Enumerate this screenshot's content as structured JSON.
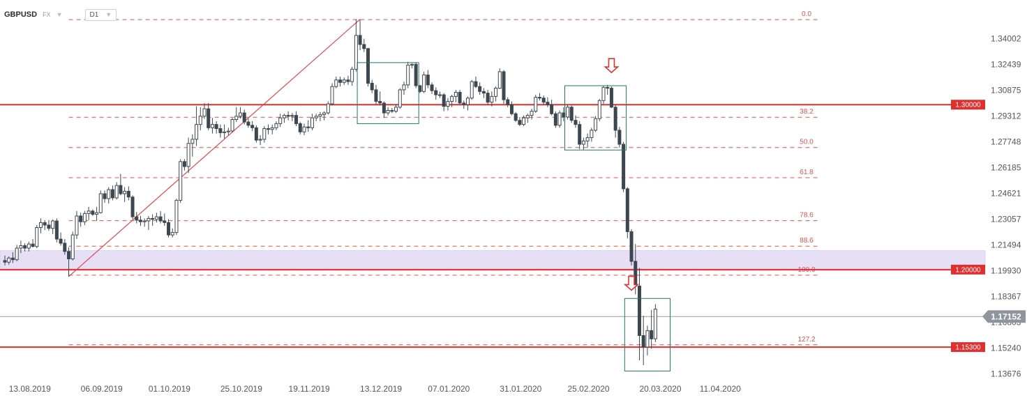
{
  "header": {
    "symbol": "GBPUSD",
    "market": "FX",
    "timeframe": "D1"
  },
  "chart_data": {
    "type": "candlestick",
    "ylim": [
      1.1346,
      1.3528
    ],
    "y_ticks": [
      "1.34002",
      "1.32439",
      "1.30875",
      "1.29312",
      "1.27748",
      "1.26185",
      "1.24621",
      "1.23057",
      "1.21494",
      "1.19930",
      "1.18367",
      "1.16803",
      "1.15240",
      "1.13676"
    ],
    "x_ticks": [
      "13.08.2019",
      "06.09.2019",
      "01.10.2019",
      "25.10.2019",
      "19.11.2019",
      "13.12.2019",
      "07.01.2020",
      "31.01.2020",
      "25.02.2020",
      "20.03.2020",
      "11.04.2020"
    ],
    "x_tick_dates": [
      "2019-08-13",
      "2019-09-06",
      "2019-10-01",
      "2019-10-25",
      "2019-11-19",
      "2019-12-13",
      "2020-01-07",
      "2020-01-31",
      "2020-02-25",
      "2020-03-20",
      "2020-04-11"
    ],
    "current_price": "1.17152",
    "horizontal_levels": [
      {
        "label": "1.30000",
        "value": 1.3
      },
      {
        "label": "1.20000",
        "value": 1.2
      },
      {
        "label": "1.15300",
        "value": 1.153
      }
    ],
    "support_zone": [
      1.1994,
      1.2115
    ],
    "fibonacci": [
      {
        "label": "0.0",
        "value": 1.3516
      },
      {
        "label": "38.2",
        "value": 1.2924
      },
      {
        "label": "50.0",
        "value": 1.274
      },
      {
        "label": "61.8",
        "value": 1.2557
      },
      {
        "label": "78.6",
        "value": 1.2297
      },
      {
        "label": "88.6",
        "value": 1.2142
      },
      {
        "label": "100.0",
        "value": 1.1966
      },
      {
        "label": "127.2",
        "value": 1.1544
      }
    ],
    "trendline": {
      "from": [
        "2019-09-03",
        1.1958
      ],
      "to": [
        "2019-12-13",
        1.3518
      ]
    },
    "consolidation_boxes": [
      {
        "from": "2019-12-13",
        "to": "2020-01-02",
        "y": [
          1.2885,
          1.3255
        ]
      },
      {
        "from": "2020-02-25",
        "to": "2020-03-16",
        "y": [
          1.2725,
          1.3115
        ]
      },
      {
        "from": "2020-03-17",
        "to": "2020-03-31",
        "y": [
          1.1385,
          1.1825
        ]
      }
    ],
    "sell_arrows": [
      [
        "2020-03-11",
        1.3195
      ],
      [
        "2020-03-18",
        1.1875
      ]
    ],
    "candles": [
      [
        "2019-08-12",
        1.2055,
        1.2085,
        1.2025,
        1.2045
      ],
      [
        "2019-08-13",
        1.2045,
        1.208,
        1.203,
        1.207
      ],
      [
        "2019-08-14",
        1.207,
        1.2105,
        1.204,
        1.206
      ],
      [
        "2019-08-15",
        1.206,
        1.215,
        1.205,
        1.213
      ],
      [
        "2019-08-16",
        1.213,
        1.2175,
        1.21,
        1.2145
      ],
      [
        "2019-08-19",
        1.2145,
        1.216,
        1.211,
        1.213
      ],
      [
        "2019-08-20",
        1.213,
        1.217,
        1.211,
        1.2155
      ],
      [
        "2019-08-21",
        1.2155,
        1.2185,
        1.2135,
        1.214
      ],
      [
        "2019-08-22",
        1.214,
        1.227,
        1.213,
        1.2255
      ],
      [
        "2019-08-23",
        1.2255,
        1.231,
        1.222,
        1.2285
      ],
      [
        "2019-08-26",
        1.2285,
        1.23,
        1.224,
        1.227
      ],
      [
        "2019-08-27",
        1.227,
        1.23,
        1.2235,
        1.225
      ],
      [
        "2019-08-28",
        1.225,
        1.2305,
        1.2215,
        1.2295
      ],
      [
        "2019-08-29",
        1.2295,
        1.231,
        1.2165,
        1.2185
      ],
      [
        "2019-08-30",
        1.2185,
        1.2225,
        1.2145,
        1.216
      ],
      [
        "2019-09-02",
        1.216,
        1.2185,
        1.209,
        1.211
      ],
      [
        "2019-09-03",
        1.211,
        1.2135,
        1.1958,
        1.2065
      ],
      [
        "2019-09-04",
        1.2065,
        1.223,
        1.2055,
        1.221
      ],
      [
        "2019-09-05",
        1.221,
        1.2355,
        1.2185,
        1.2325
      ],
      [
        "2019-09-06",
        1.2325,
        1.2345,
        1.226,
        1.229
      ],
      [
        "2019-09-09",
        1.229,
        1.2355,
        1.227,
        1.234
      ],
      [
        "2019-09-10",
        1.234,
        1.238,
        1.23,
        1.2355
      ],
      [
        "2019-09-11",
        1.2355,
        1.2365,
        1.2325,
        1.2335
      ],
      [
        "2019-09-12",
        1.2335,
        1.238,
        1.2295,
        1.2345
      ],
      [
        "2019-09-13",
        1.2345,
        1.248,
        1.234,
        1.246
      ],
      [
        "2019-09-16",
        1.246,
        1.248,
        1.2405,
        1.243
      ],
      [
        "2019-09-17",
        1.243,
        1.25,
        1.24,
        1.2485
      ],
      [
        "2019-09-18",
        1.2485,
        1.251,
        1.242,
        1.2435
      ],
      [
        "2019-09-19",
        1.2435,
        1.253,
        1.2425,
        1.251
      ],
      [
        "2019-09-20",
        1.251,
        1.258,
        1.245,
        1.246
      ],
      [
        "2019-09-23",
        1.246,
        1.25,
        1.241,
        1.2475
      ],
      [
        "2019-09-24",
        1.2475,
        1.2505,
        1.242,
        1.244
      ],
      [
        "2019-09-25",
        1.244,
        1.245,
        1.2305,
        1.232
      ],
      [
        "2019-09-26",
        1.232,
        1.235,
        1.228,
        1.23
      ],
      [
        "2019-09-27",
        1.23,
        1.2325,
        1.2265,
        1.229
      ],
      [
        "2019-09-30",
        1.229,
        1.231,
        1.226,
        1.2295
      ],
      [
        "2019-10-01",
        1.2295,
        1.2325,
        1.224,
        1.231
      ],
      [
        "2019-10-02",
        1.231,
        1.2335,
        1.2265,
        1.2305
      ],
      [
        "2019-10-03",
        1.2305,
        1.2345,
        1.2285,
        1.232
      ],
      [
        "2019-10-04",
        1.232,
        1.2355,
        1.228,
        1.2295
      ],
      [
        "2019-10-07",
        1.2295,
        1.234,
        1.2265,
        1.2285
      ],
      [
        "2019-10-08",
        1.2285,
        1.2305,
        1.2195,
        1.221
      ],
      [
        "2019-10-09",
        1.221,
        1.225,
        1.2195,
        1.2225
      ],
      [
        "2019-10-10",
        1.2225,
        1.243,
        1.221,
        1.242
      ],
      [
        "2019-10-11",
        1.242,
        1.267,
        1.2405,
        1.2655
      ],
      [
        "2019-10-14",
        1.2655,
        1.267,
        1.26,
        1.2625
      ],
      [
        "2019-10-15",
        1.2625,
        1.28,
        1.2585,
        1.2765
      ],
      [
        "2019-10-16",
        1.2765,
        1.282,
        1.2685,
        1.279
      ],
      [
        "2019-10-17",
        1.279,
        1.299,
        1.275,
        1.288
      ],
      [
        "2019-10-18",
        1.288,
        1.2985,
        1.2845,
        1.293
      ],
      [
        "2019-10-21",
        1.293,
        1.301,
        1.2915,
        1.2975
      ],
      [
        "2019-10-22",
        1.2975,
        1.301,
        1.2845,
        1.286
      ],
      [
        "2019-10-23",
        1.286,
        1.292,
        1.2825,
        1.288
      ],
      [
        "2019-10-24",
        1.288,
        1.29,
        1.2825,
        1.2855
      ],
      [
        "2019-10-25",
        1.2855,
        1.288,
        1.28,
        1.283
      ],
      [
        "2019-10-28",
        1.283,
        1.288,
        1.2795,
        1.2835
      ],
      [
        "2019-10-29",
        1.2835,
        1.286,
        1.2815,
        1.284
      ],
      [
        "2019-10-30",
        1.284,
        1.292,
        1.283,
        1.291
      ],
      [
        "2019-10-31",
        1.291,
        1.2985,
        1.2895,
        1.293
      ],
      [
        "2019-11-01",
        1.293,
        1.2985,
        1.2915,
        1.295
      ],
      [
        "2019-11-04",
        1.295,
        1.297,
        1.288,
        1.2895
      ],
      [
        "2019-11-05",
        1.2895,
        1.2915,
        1.286,
        1.2875
      ],
      [
        "2019-11-06",
        1.2875,
        1.29,
        1.284,
        1.286
      ],
      [
        "2019-11-07",
        1.286,
        1.2875,
        1.277,
        1.2785
      ],
      [
        "2019-11-08",
        1.2785,
        1.2815,
        1.2755,
        1.279
      ],
      [
        "2019-11-11",
        1.279,
        1.287,
        1.277,
        1.2855
      ],
      [
        "2019-11-12",
        1.2855,
        1.288,
        1.282,
        1.285
      ],
      [
        "2019-11-13",
        1.285,
        1.288,
        1.282,
        1.286
      ],
      [
        "2019-11-14",
        1.286,
        1.29,
        1.2845,
        1.2885
      ],
      [
        "2019-11-15",
        1.2885,
        1.2945,
        1.2865,
        1.292
      ],
      [
        "2019-11-18",
        1.292,
        1.2945,
        1.289,
        1.2935
      ],
      [
        "2019-11-19",
        1.2935,
        1.296,
        1.2905,
        1.293
      ],
      [
        "2019-11-20",
        1.293,
        1.295,
        1.29,
        1.2935
      ],
      [
        "2019-11-21",
        1.2935,
        1.296,
        1.287,
        1.2885
      ],
      [
        "2019-11-22",
        1.2885,
        1.2895,
        1.282,
        1.2835
      ],
      [
        "2019-11-25",
        1.2835,
        1.2885,
        1.2815,
        1.2865
      ],
      [
        "2019-11-26",
        1.2865,
        1.2905,
        1.2835,
        1.286
      ],
      [
        "2019-11-27",
        1.286,
        1.2945,
        1.2845,
        1.292
      ],
      [
        "2019-11-28",
        1.292,
        1.2945,
        1.29,
        1.293
      ],
      [
        "2019-11-29",
        1.293,
        1.2955,
        1.29,
        1.294
      ],
      [
        "2019-12-02",
        1.294,
        1.296,
        1.2905,
        1.295
      ],
      [
        "2019-12-03",
        1.295,
        1.302,
        1.294,
        1.3005
      ],
      [
        "2019-12-04",
        1.3005,
        1.313,
        1.2995,
        1.311
      ],
      [
        "2019-12-05",
        1.311,
        1.317,
        1.31,
        1.315
      ],
      [
        "2019-12-06",
        1.315,
        1.317,
        1.311,
        1.3135
      ],
      [
        "2019-12-09",
        1.3135,
        1.3165,
        1.312,
        1.315
      ],
      [
        "2019-12-10",
        1.315,
        1.3175,
        1.312,
        1.314
      ],
      [
        "2019-12-11",
        1.314,
        1.323,
        1.3115,
        1.3215
      ],
      [
        "2019-12-12",
        1.3215,
        1.3518,
        1.32,
        1.342
      ],
      [
        "2019-12-13",
        1.342,
        1.3515,
        1.333,
        1.3365
      ],
      [
        "2019-12-16",
        1.3365,
        1.34,
        1.332,
        1.334
      ],
      [
        "2019-12-17",
        1.334,
        1.3345,
        1.311,
        1.313
      ],
      [
        "2019-12-18",
        1.313,
        1.315,
        1.307,
        1.309
      ],
      [
        "2019-12-19",
        1.309,
        1.312,
        1.3,
        1.302
      ],
      [
        "2019-12-20",
        1.302,
        1.308,
        1.2995,
        1.301
      ],
      [
        "2019-12-23",
        1.301,
        1.302,
        1.292,
        1.295
      ],
      [
        "2019-12-24",
        1.295,
        1.2985,
        1.2935,
        1.2965
      ],
      [
        "2019-12-25",
        1.2965,
        1.298,
        1.295,
        1.296
      ],
      [
        "2019-12-26",
        1.296,
        1.3,
        1.295,
        1.2985
      ],
      [
        "2019-12-27",
        1.2985,
        1.31,
        1.2975,
        1.309
      ],
      [
        "2019-12-30",
        1.309,
        1.314,
        1.306,
        1.312
      ],
      [
        "2019-12-31",
        1.312,
        1.326,
        1.31,
        1.324
      ],
      [
        "2020-01-01",
        1.324,
        1.325,
        1.322,
        1.3245
      ],
      [
        "2020-01-02",
        1.3245,
        1.3255,
        1.31,
        1.3115
      ],
      [
        "2020-01-03",
        1.3115,
        1.312,
        1.307,
        1.308
      ],
      [
        "2020-01-06",
        1.308,
        1.32,
        1.307,
        1.318
      ],
      [
        "2020-01-07",
        1.318,
        1.321,
        1.31,
        1.312
      ],
      [
        "2020-01-08",
        1.312,
        1.3135,
        1.3065,
        1.3085
      ],
      [
        "2020-01-09",
        1.3085,
        1.3105,
        1.303,
        1.306
      ],
      [
        "2020-01-10",
        1.306,
        1.308,
        1.304,
        1.306
      ],
      [
        "2020-01-13",
        1.306,
        1.307,
        1.296,
        1.299
      ],
      [
        "2020-01-14",
        1.299,
        1.304,
        1.2965,
        1.302
      ],
      [
        "2020-01-15",
        1.302,
        1.306,
        1.2985,
        1.305
      ],
      [
        "2020-01-16",
        1.305,
        1.309,
        1.3015,
        1.3075
      ],
      [
        "2020-01-17",
        1.3075,
        1.309,
        1.3,
        1.301
      ],
      [
        "2020-01-20",
        1.301,
        1.3025,
        1.2975,
        1.3
      ],
      [
        "2020-01-21",
        1.3,
        1.305,
        1.2965,
        1.304
      ],
      [
        "2020-01-22",
        1.304,
        1.315,
        1.303,
        1.314
      ],
      [
        "2020-01-23",
        1.314,
        1.317,
        1.31,
        1.311
      ],
      [
        "2020-01-24",
        1.311,
        1.3135,
        1.306,
        1.308
      ],
      [
        "2020-01-27",
        1.308,
        1.31,
        1.304,
        1.307
      ],
      [
        "2020-01-28",
        1.307,
        1.309,
        1.3,
        1.3015
      ],
      [
        "2020-01-29",
        1.3015,
        1.308,
        1.299,
        1.305
      ],
      [
        "2020-01-30",
        1.305,
        1.311,
        1.302,
        1.31
      ],
      [
        "2020-01-31",
        1.31,
        1.322,
        1.3095,
        1.32
      ],
      [
        "2020-02-03",
        1.32,
        1.321,
        1.3005,
        1.303
      ],
      [
        "2020-02-04",
        1.303,
        1.3045,
        1.2985,
        1.3
      ],
      [
        "2020-02-05",
        1.3,
        1.302,
        1.2935,
        1.2945
      ],
      [
        "2020-02-06",
        1.2945,
        1.2955,
        1.2895,
        1.2905
      ],
      [
        "2020-02-07",
        1.2905,
        1.2925,
        1.287,
        1.288
      ],
      [
        "2020-02-10",
        1.288,
        1.2935,
        1.287,
        1.292
      ],
      [
        "2020-02-11",
        1.292,
        1.2945,
        1.289,
        1.2935
      ],
      [
        "2020-02-12",
        1.2935,
        1.2975,
        1.291,
        1.296
      ],
      [
        "2020-02-13",
        1.296,
        1.306,
        1.295,
        1.3045
      ],
      [
        "2020-02-14",
        1.3045,
        1.307,
        1.3025,
        1.304
      ],
      [
        "2020-02-17",
        1.304,
        1.3055,
        1.3,
        1.3015
      ],
      [
        "2020-02-18",
        1.3015,
        1.3045,
        1.2985,
        1.3
      ],
      [
        "2020-02-19",
        1.3,
        1.303,
        1.2935,
        1.2945
      ],
      [
        "2020-02-20",
        1.2945,
        1.296,
        1.286,
        1.2875
      ],
      [
        "2020-02-21",
        1.2875,
        1.2965,
        1.286,
        1.295
      ],
      [
        "2020-02-24",
        1.295,
        1.2985,
        1.29,
        1.2925
      ],
      [
        "2020-02-25",
        1.2925,
        1.3,
        1.291,
        1.2985
      ],
      [
        "2020-02-26",
        1.2985,
        1.2995,
        1.289,
        1.2905
      ],
      [
        "2020-02-27",
        1.2905,
        1.2935,
        1.286,
        1.288
      ],
      [
        "2020-02-28",
        1.288,
        1.29,
        1.273,
        1.276
      ],
      [
        "2020-03-02",
        1.276,
        1.28,
        1.2725,
        1.278
      ],
      [
        "2020-03-03",
        1.278,
        1.2825,
        1.274,
        1.28
      ],
      [
        "2020-03-04",
        1.28,
        1.286,
        1.2775,
        1.2845
      ],
      [
        "2020-03-05",
        1.2845,
        1.293,
        1.2835,
        1.2915
      ],
      [
        "2020-03-06",
        1.2915,
        1.3035,
        1.29,
        1.3025
      ],
      [
        "2020-03-09",
        1.3025,
        1.3115,
        1.3005,
        1.3105
      ],
      [
        "2020-03-10",
        1.3105,
        1.312,
        1.306,
        1.31
      ],
      [
        "2020-03-11",
        1.31,
        1.311,
        1.298,
        1.2985
      ],
      [
        "2020-03-12",
        1.2985,
        1.3,
        1.28,
        1.2845
      ],
      [
        "2020-03-13",
        1.2845,
        1.2865,
        1.274,
        1.276
      ],
      [
        "2020-03-16",
        1.276,
        1.2775,
        1.247,
        1.249
      ],
      [
        "2020-03-17",
        1.249,
        1.25,
        1.219,
        1.223
      ],
      [
        "2020-03-18",
        1.223,
        1.2245,
        1.2025,
        1.205
      ],
      [
        "2020-03-19",
        1.205,
        1.2155,
        1.185,
        1.19
      ],
      [
        "2020-03-20",
        1.19,
        1.201,
        1.145,
        1.16
      ],
      [
        "2020-03-23",
        1.16,
        1.172,
        1.142,
        1.153
      ],
      [
        "2020-03-24",
        1.153,
        1.166,
        1.148,
        1.163
      ],
      [
        "2020-03-25",
        1.163,
        1.1755,
        1.152,
        1.158
      ],
      [
        "2020-03-26",
        1.158,
        1.179,
        1.156,
        1.176
      ]
    ]
  },
  "icons": [
    "dropdown-caret",
    "sell-arrow"
  ]
}
